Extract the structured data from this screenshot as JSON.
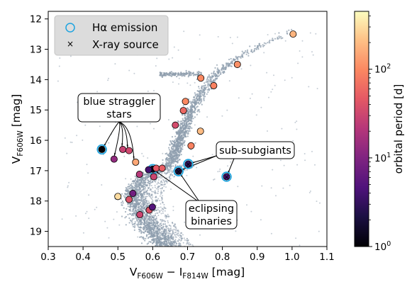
{
  "chart_data": {
    "type": "scatter",
    "title": "",
    "xlabel": {
      "main": "V",
      "sub1": "F606W",
      "mid": " − I",
      "sub2": "F814W",
      "unit": " [mag]"
    },
    "ylabel": {
      "main": "V",
      "sub": "F606W",
      "unit": " [mag]"
    },
    "xlim": [
      0.3,
      1.1
    ],
    "ylim": [
      19.5,
      11.75
    ],
    "y_inverted": true,
    "xticks": [
      "0.3",
      "0.4",
      "0.5",
      "0.6",
      "0.7",
      "0.8",
      "0.9",
      "1.0",
      "1.1"
    ],
    "yticks": [
      "12",
      "13",
      "14",
      "15",
      "16",
      "17",
      "18",
      "19"
    ],
    "grid": false,
    "legend": {
      "placement": "top-left",
      "entries": [
        {
          "label": "Hα emission",
          "marker": "open-circle",
          "color": "#1ea4e0"
        },
        {
          "label": "X-ray source",
          "marker": "x",
          "color": "#d0d0d0"
        }
      ]
    },
    "colorbar": {
      "label": "orbital period [d]",
      "scale": "log",
      "range": [
        1,
        450
      ],
      "colormap": "magma",
      "tick_labels": [
        {
          "value": 1,
          "base": "10",
          "exp": "0"
        },
        {
          "value": 10,
          "base": "10",
          "exp": "1"
        },
        {
          "value": 100,
          "base": "10",
          "exp": "2"
        }
      ]
    },
    "background_population": {
      "color": "#8e9dad",
      "description": ""
    },
    "stars": [
      {
        "x": 1.003,
        "y": 12.5,
        "period": 180,
        "halpha": false,
        "xray": false
      },
      {
        "x": 0.843,
        "y": 13.5,
        "period": 110,
        "halpha": false,
        "xray": false
      },
      {
        "x": 0.738,
        "y": 13.95,
        "period": 100,
        "halpha": false,
        "xray": false
      },
      {
        "x": 0.775,
        "y": 14.2,
        "period": 90,
        "halpha": false,
        "xray": false
      },
      {
        "x": 0.694,
        "y": 14.72,
        "period": 100,
        "halpha": false,
        "xray": false
      },
      {
        "x": 0.688,
        "y": 15.02,
        "period": 60,
        "halpha": false,
        "xray": false
      },
      {
        "x": 0.665,
        "y": 15.5,
        "period": 35,
        "halpha": false,
        "xray": false
      },
      {
        "x": 0.737,
        "y": 15.7,
        "period": 200,
        "halpha": false,
        "xray": false
      },
      {
        "x": 0.71,
        "y": 16.18,
        "period": 90,
        "halpha": false,
        "xray": false
      },
      {
        "x": 0.454,
        "y": 16.3,
        "period": 1.0,
        "halpha": true,
        "xray": false
      },
      {
        "x": 0.489,
        "y": 16.62,
        "period": 13,
        "halpha": false,
        "xray": false
      },
      {
        "x": 0.514,
        "y": 16.3,
        "period": 28,
        "halpha": false,
        "xray": false
      },
      {
        "x": 0.532,
        "y": 16.34,
        "period": 33,
        "halpha": false,
        "xray": false
      },
      {
        "x": 0.551,
        "y": 16.72,
        "period": 150,
        "halpha": false,
        "xray": false
      },
      {
        "x": 0.702,
        "y": 16.78,
        "period": 3,
        "halpha": true,
        "xray": true
      },
      {
        "x": 0.674,
        "y": 17.02,
        "period": 2,
        "halpha": true,
        "xray": true
      },
      {
        "x": 0.812,
        "y": 17.2,
        "period": 4,
        "halpha": true,
        "xray": true
      },
      {
        "x": 0.6,
        "y": 16.95,
        "period": 1.5,
        "halpha": true,
        "xray": true
      },
      {
        "x": 0.588,
        "y": 16.97,
        "period": 4,
        "halpha": false,
        "xray": false
      },
      {
        "x": 0.562,
        "y": 17.12,
        "period": 22,
        "halpha": false,
        "xray": false
      },
      {
        "x": 0.61,
        "y": 16.92,
        "period": 45,
        "halpha": false,
        "xray": false
      },
      {
        "x": 0.627,
        "y": 16.92,
        "period": 50,
        "halpha": false,
        "xray": false
      },
      {
        "x": 0.603,
        "y": 17.2,
        "period": 30,
        "halpha": false,
        "xray": false
      },
      {
        "x": 0.5,
        "y": 17.85,
        "period": 300,
        "halpha": false,
        "xray": false
      },
      {
        "x": 0.532,
        "y": 17.95,
        "period": 40,
        "halpha": false,
        "xray": false
      },
      {
        "x": 0.543,
        "y": 17.75,
        "period": 8,
        "halpha": false,
        "xray": false
      },
      {
        "x": 0.563,
        "y": 18.45,
        "period": 30,
        "halpha": false,
        "xray": false
      },
      {
        "x": 0.59,
        "y": 18.3,
        "period": 40,
        "halpha": false,
        "xray": false
      },
      {
        "x": 0.599,
        "y": 18.2,
        "period": 5,
        "halpha": false,
        "xray": false
      }
    ],
    "annotations": [
      {
        "lines": [
          "blue straggler",
          "stars"
        ],
        "targets": [
          [
            0.454,
            16.3
          ],
          [
            0.489,
            16.62
          ],
          [
            0.514,
            16.3
          ],
          [
            0.532,
            16.34
          ],
          [
            0.551,
            16.72
          ]
        ]
      },
      {
        "lines": [
          "sub-subgiants"
        ],
        "targets": [
          [
            0.702,
            16.78
          ],
          [
            0.674,
            17.02
          ],
          [
            0.812,
            17.2
          ]
        ]
      },
      {
        "lines": [
          "eclipsing",
          "binaries"
        ],
        "targets": [
          [
            0.6,
            16.95
          ],
          [
            0.674,
            17.02
          ]
        ]
      }
    ]
  }
}
